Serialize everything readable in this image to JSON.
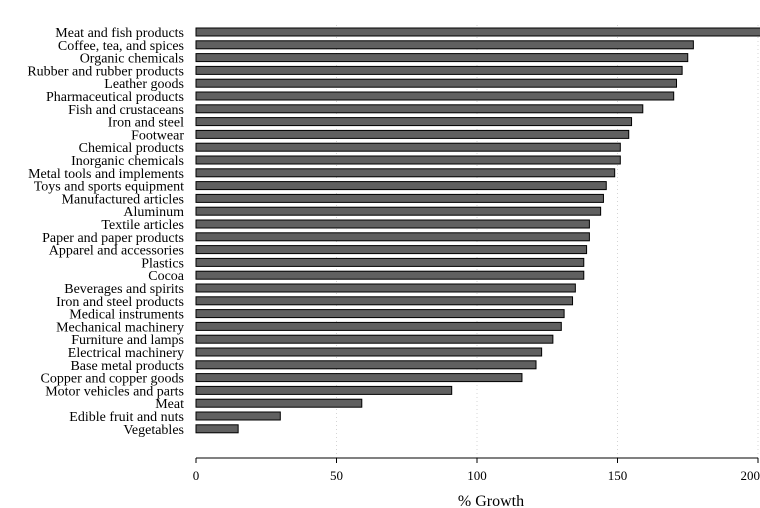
{
  "chart_data": {
    "type": "bar",
    "orientation": "horizontal",
    "categories": [
      "Meat and fish products",
      "Coffee, tea, and spices",
      "Organic chemicals",
      "Rubber and rubber products",
      "Leather goods",
      "Pharmaceutical products",
      "Fish and crustaceans",
      "Iron and steel",
      "Footwear",
      "Chemical products",
      "Inorganic chemicals",
      "Metal tools and implements",
      "Toys and sports equipment",
      "Manufactured articles",
      "Aluminum",
      "Textile articles",
      "Paper and paper products",
      "Apparel and accessories",
      "Plastics",
      "Cocoa",
      "Beverages and spirits",
      "Iron and steel products",
      "Medical instruments",
      "Mechanical machinery",
      "Furniture and lamps",
      "Electrical machinery",
      "Base metal products",
      "Copper and copper goods",
      "Motor vehicles and parts",
      "Meat",
      "Edible fruit and nuts",
      "Vegetables"
    ],
    "values": [
      205,
      177,
      175,
      173,
      171,
      170,
      159,
      155,
      154,
      151,
      151,
      149,
      146,
      145,
      144,
      140,
      140,
      139,
      138,
      138,
      135,
      134,
      131,
      130,
      127,
      123,
      121,
      116,
      91,
      59,
      30,
      15
    ],
    "xlabel": "% Growth",
    "ylabel": "",
    "title": "",
    "xlim": [
      0,
      200
    ],
    "xticks": [
      "0",
      "50",
      "100",
      "150",
      "200"
    ],
    "grid": true,
    "colors": {
      "bar_fill": "#606060",
      "bar_stroke": "#000000",
      "grid": "#d4d4d4",
      "axis": "#000000"
    }
  }
}
